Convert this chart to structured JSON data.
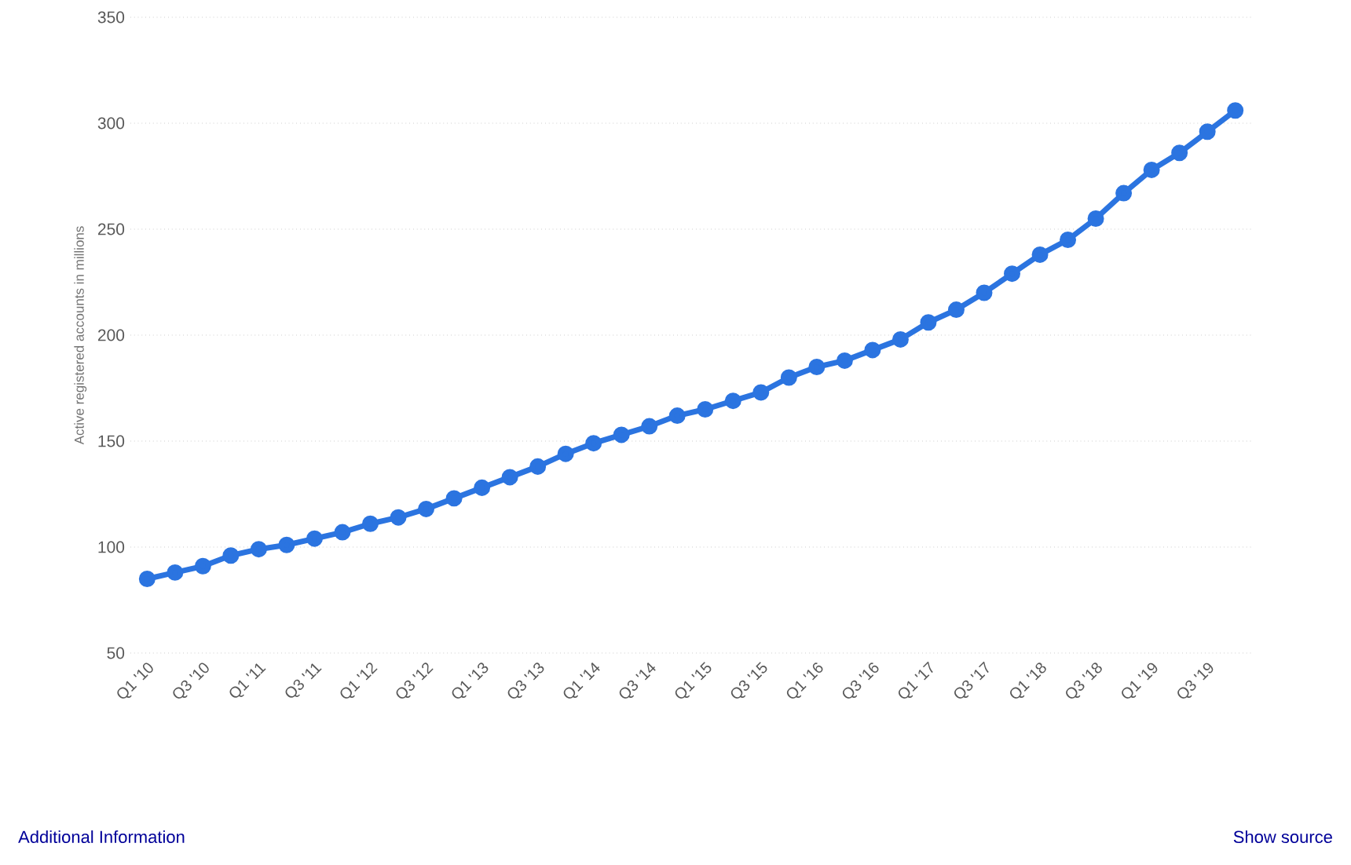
{
  "chart_data": {
    "type": "line",
    "ylabel": "Active registered accounts in millions",
    "categories": [
      "Q1 '10",
      null,
      "Q3 '10",
      null,
      "Q1 '11",
      null,
      "Q3 '11",
      null,
      "Q1 '12",
      null,
      "Q3 '12",
      null,
      "Q1 '13",
      null,
      "Q3 '13",
      null,
      "Q1 '14",
      null,
      "Q3 '14",
      null,
      "Q1 '15",
      null,
      "Q3 '15",
      null,
      "Q1 '16",
      null,
      "Q3 '16",
      null,
      "Q1 '17",
      null,
      "Q3 '17",
      null,
      "Q1 '18",
      null,
      "Q3 '18",
      null,
      "Q1 '19",
      null,
      "Q3 '19",
      null
    ],
    "series": [
      {
        "color": "#2b74e0",
        "values": [
          85,
          88,
          91,
          96,
          99,
          101,
          104,
          107,
          111,
          114,
          118,
          123,
          128,
          133,
          138,
          144,
          149,
          153,
          157,
          162,
          165,
          169,
          173,
          180,
          185,
          188,
          193,
          198,
          206,
          212,
          220,
          229,
          238,
          245,
          255,
          267,
          278,
          286,
          296,
          306
        ]
      }
    ],
    "ylim": [
      50,
      350
    ],
    "yticks": [
      50,
      100,
      150,
      200,
      250,
      300,
      350
    ],
    "grid": "y",
    "marker": "circle",
    "line_style": "solid",
    "annotations": [
      "Additional Information",
      "Show source"
    ]
  }
}
